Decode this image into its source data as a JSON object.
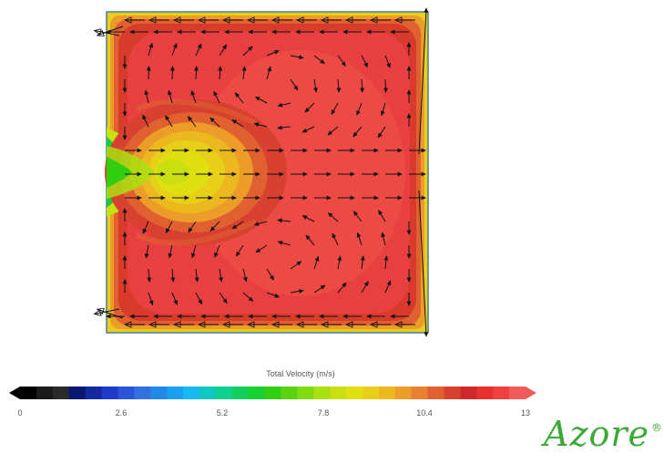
{
  "colorbar": {
    "title": "Total Velocity (m/s)",
    "ticks": [
      "0",
      "2.6",
      "5.2",
      "7.8",
      "10.4",
      "13"
    ],
    "min": 0,
    "max": 13,
    "colors": [
      "#000000",
      "#1a1a1a",
      "#2a2a2a",
      "#0a1670",
      "#1428a0",
      "#1f3bc8",
      "#2a55d8",
      "#3570e0",
      "#2088e8",
      "#1aa0f0",
      "#18b8f0",
      "#10c8c0",
      "#10d090",
      "#12d060",
      "#18d030",
      "#30d010",
      "#5ad410",
      "#80dc10",
      "#a8e010",
      "#c8e010",
      "#e0e010",
      "#e8d018",
      "#ecb820",
      "#ec9c28",
      "#e88030",
      "#e06030",
      "#d84030",
      "#d02828",
      "#e83030",
      "#f04040",
      "#f05a5a"
    ]
  },
  "logo": {
    "text": "Azore",
    "mark": "®",
    "color": "#3aa935"
  }
}
